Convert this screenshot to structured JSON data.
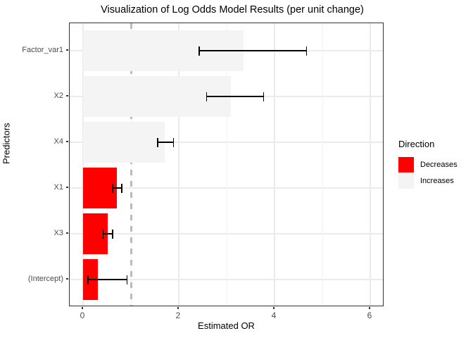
{
  "chart_data": {
    "type": "bar",
    "orientation": "horizontal",
    "title": "Visualization of Log Odds Model Results (per unit change)",
    "xlabel": "Estimated OR",
    "ylabel": "Predictors",
    "legend": {
      "title": "Direction",
      "position": "right",
      "entries": [
        {
          "label": "Decreases",
          "color": "#FF0000"
        },
        {
          "label": "Increases",
          "color": "#F4F4F4"
        }
      ]
    },
    "categories": [
      "Factor_var1",
      "X2",
      "X4",
      "X1",
      "X3",
      "(Intercept)"
    ],
    "bars": [
      {
        "label": "Factor_var1",
        "or": 3.35,
        "ci_low": 2.43,
        "ci_high": 4.67,
        "direction": "Increases"
      },
      {
        "label": "X2",
        "or": 3.09,
        "ci_low": 2.58,
        "ci_high": 3.77,
        "direction": "Increases"
      },
      {
        "label": "X4",
        "or": 1.7,
        "ci_low": 1.56,
        "ci_high": 1.89,
        "direction": "Increases"
      },
      {
        "label": "X1",
        "or": 0.71,
        "ci_low": 0.62,
        "ci_high": 0.81,
        "direction": "Decreases"
      },
      {
        "label": "X3",
        "or": 0.52,
        "ci_low": 0.42,
        "ci_high": 0.62,
        "direction": "Decreases"
      },
      {
        "label": "(Intercept)",
        "or": 0.31,
        "ci_low": 0.1,
        "ci_high": 0.92,
        "direction": "Decreases"
      }
    ],
    "x_ticks": [
      0,
      2,
      4,
      6
    ],
    "x_minor_ticks": [
      1,
      3,
      5
    ],
    "xlim": [
      -0.3,
      6.3
    ],
    "reference_line": {
      "x": 1,
      "style": "dashed",
      "color": "#BBBBBB"
    },
    "grid": true,
    "colors": {
      "grid_major": "#EBEBEB",
      "grid_minor": "#F2F2F2",
      "panel_border": "#333333",
      "axis_text": "#4D4D4D",
      "errorbar": "#000000",
      "background": "#FFFFFF"
    }
  }
}
